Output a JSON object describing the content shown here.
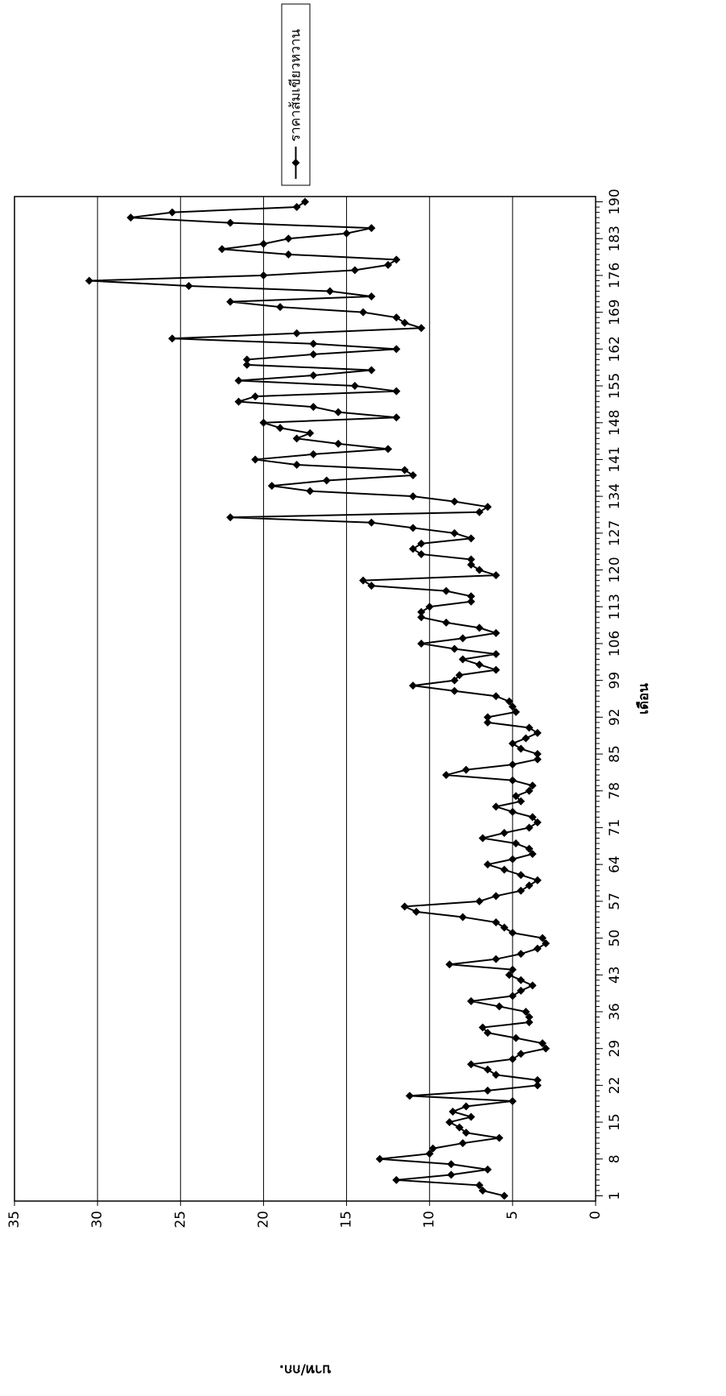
{
  "chart_data": {
    "type": "line",
    "x_label": "เดือน",
    "y_label": "บาท/กก.",
    "x": [
      1,
      2,
      3,
      4,
      5,
      6,
      7,
      8,
      9,
      10,
      11,
      12,
      13,
      14,
      15,
      16,
      17,
      18,
      19,
      20,
      21,
      22,
      23,
      24,
      25,
      26,
      27,
      28,
      29,
      30,
      31,
      32,
      33,
      34,
      35,
      36,
      37,
      38,
      39,
      40,
      41,
      42,
      43,
      44,
      45,
      46,
      47,
      48,
      49,
      50,
      51,
      52,
      53,
      54,
      55,
      56,
      57,
      58,
      59,
      60,
      61,
      62,
      63,
      64,
      65,
      66,
      67,
      68,
      69,
      70,
      71,
      72,
      73,
      74,
      75,
      76,
      77,
      78,
      79,
      80,
      81,
      82,
      83,
      84,
      85,
      86,
      87,
      88,
      89,
      90,
      91,
      92,
      93,
      94,
      95,
      96,
      97,
      98,
      99,
      100,
      101,
      102,
      103,
      104,
      105,
      106,
      107,
      108,
      109,
      110,
      111,
      112,
      113,
      114,
      115,
      116,
      117,
      118,
      119,
      120,
      121,
      122,
      123,
      124,
      125,
      126,
      127,
      128,
      129,
      130,
      131,
      132,
      133,
      134,
      135,
      136,
      137,
      138,
      139,
      140,
      141,
      142,
      143,
      144,
      145,
      146,
      147,
      148,
      149,
      150,
      151,
      152,
      153,
      154,
      155,
      156,
      157,
      158,
      159,
      160,
      161,
      162,
      163,
      164,
      165,
      166,
      167,
      168,
      169,
      170,
      171,
      172,
      173,
      174,
      175,
      176,
      177,
      178,
      179,
      180,
      181,
      182,
      183,
      184,
      185,
      186,
      187,
      188,
      189,
      190
    ],
    "series": [
      {
        "name": "ราคาส้มเขียวหวาน",
        "color": "#000000",
        "values": [
          5.5,
          6.8,
          7.0,
          12.0,
          8.7,
          6.5,
          8.7,
          13.0,
          10.0,
          9.8,
          8.0,
          5.8,
          7.8,
          8.2,
          8.8,
          7.5,
          8.6,
          7.8,
          5.0,
          11.2,
          6.5,
          3.5,
          3.5,
          6.0,
          6.5,
          7.5,
          5.0,
          4.5,
          3.0,
          3.2,
          4.8,
          6.5,
          6.8,
          4.0,
          4.0,
          4.2,
          5.8,
          7.5,
          5.0,
          4.5,
          3.8,
          4.5,
          5.2,
          5.0,
          8.8,
          6.0,
          4.5,
          3.5,
          3.0,
          3.2,
          5.0,
          5.5,
          6.0,
          8.0,
          10.8,
          11.5,
          7.0,
          6.0,
          4.5,
          4.0,
          3.5,
          4.5,
          5.5,
          6.5,
          5.0,
          3.8,
          4.0,
          4.8,
          6.8,
          5.5,
          4.0,
          3.5,
          3.8,
          5.0,
          6.0,
          4.5,
          4.8,
          4.0,
          3.8,
          5.0,
          9.0,
          7.8,
          5.0,
          3.5,
          3.5,
          4.5,
          5.0,
          4.2,
          3.5,
          4.0,
          6.5,
          6.5,
          4.8,
          5.0,
          5.2,
          6.0,
          8.5,
          11.0,
          8.5,
          8.2,
          6.0,
          7.0,
          8.0,
          6.0,
          8.5,
          10.5,
          8.0,
          6.0,
          7.0,
          9.0,
          10.5,
          10.5,
          10.0,
          7.5,
          7.5,
          9.0,
          13.5,
          14.0,
          6.0,
          7.0,
          7.5,
          7.5,
          10.5,
          11.0,
          10.5,
          7.5,
          8.5,
          11.0,
          13.5,
          22.0,
          7.0,
          6.5,
          8.5,
          11.0,
          17.2,
          19.5,
          16.2,
          11.0,
          11.5,
          18.0,
          20.5,
          17.0,
          12.5,
          15.5,
          18.0,
          17.2,
          19.0,
          20.0,
          12.0,
          15.5,
          17.0,
          21.5,
          20.5,
          12.0,
          14.5,
          21.5,
          17.0,
          13.5,
          21.0,
          21.0,
          17.0,
          12.0,
          17.0,
          25.5,
          18.0,
          10.5,
          11.5,
          12.0,
          14.0,
          19.0,
          22.0,
          13.5,
          16.0,
          24.5,
          30.5,
          20.0,
          14.5,
          12.5,
          12.0,
          18.5,
          22.5,
          20.0,
          18.5,
          15.0,
          13.5,
          22.0,
          28.0,
          25.5,
          18.0,
          17.5
        ]
      }
    ],
    "xlim": [
      0,
      191
    ],
    "xticks": [
      1,
      8,
      15,
      22,
      29,
      36,
      43,
      50,
      57,
      64,
      71,
      78,
      85,
      92,
      99,
      106,
      113,
      120,
      127,
      134,
      141,
      148,
      155,
      162,
      169,
      176,
      183,
      190
    ],
    "ylim": [
      0,
      35
    ],
    "yticks": [
      0,
      5,
      10,
      15,
      20,
      25,
      30,
      35
    ],
    "grid": true,
    "legend": "upper right"
  }
}
